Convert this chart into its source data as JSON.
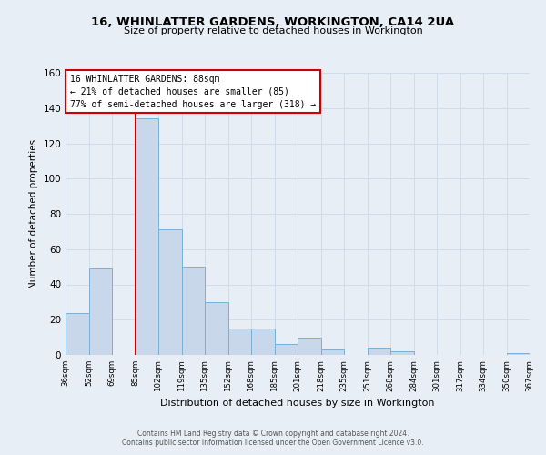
{
  "title": "16, WHINLATTER GARDENS, WORKINGTON, CA14 2UA",
  "subtitle": "Size of property relative to detached houses in Workington",
  "xlabel": "Distribution of detached houses by size in Workington",
  "ylabel": "Number of detached properties",
  "footer_line1": "Contains HM Land Registry data © Crown copyright and database right 2024.",
  "footer_line2": "Contains public sector information licensed under the Open Government Licence v3.0.",
  "bin_labels": [
    "36sqm",
    "52sqm",
    "69sqm",
    "85sqm",
    "102sqm",
    "119sqm",
    "135sqm",
    "152sqm",
    "168sqm",
    "185sqm",
    "201sqm",
    "218sqm",
    "235sqm",
    "251sqm",
    "268sqm",
    "284sqm",
    "301sqm",
    "317sqm",
    "334sqm",
    "350sqm",
    "367sqm"
  ],
  "bar_values": [
    24,
    49,
    0,
    134,
    71,
    50,
    30,
    15,
    15,
    6,
    10,
    3,
    0,
    4,
    2,
    0,
    0,
    0,
    0,
    1
  ],
  "bar_color": "#c8d8ea",
  "bar_edge_color": "#7aafd4",
  "marker_bin_index": 3,
  "marker_color": "#cc0000",
  "ylim": [
    0,
    160
  ],
  "yticks": [
    0,
    20,
    40,
    60,
    80,
    100,
    120,
    140,
    160
  ],
  "annotation_text_line1": "16 WHINLATTER GARDENS: 88sqm",
  "annotation_text_line2": "← 21% of detached houses are smaller (85)",
  "annotation_text_line3": "77% of semi-detached houses are larger (318) →",
  "annotation_box_facecolor": "#ffffff",
  "annotation_box_edgecolor": "#cc0000",
  "grid_color": "#d0dcea",
  "background_color": "#e8eef6"
}
